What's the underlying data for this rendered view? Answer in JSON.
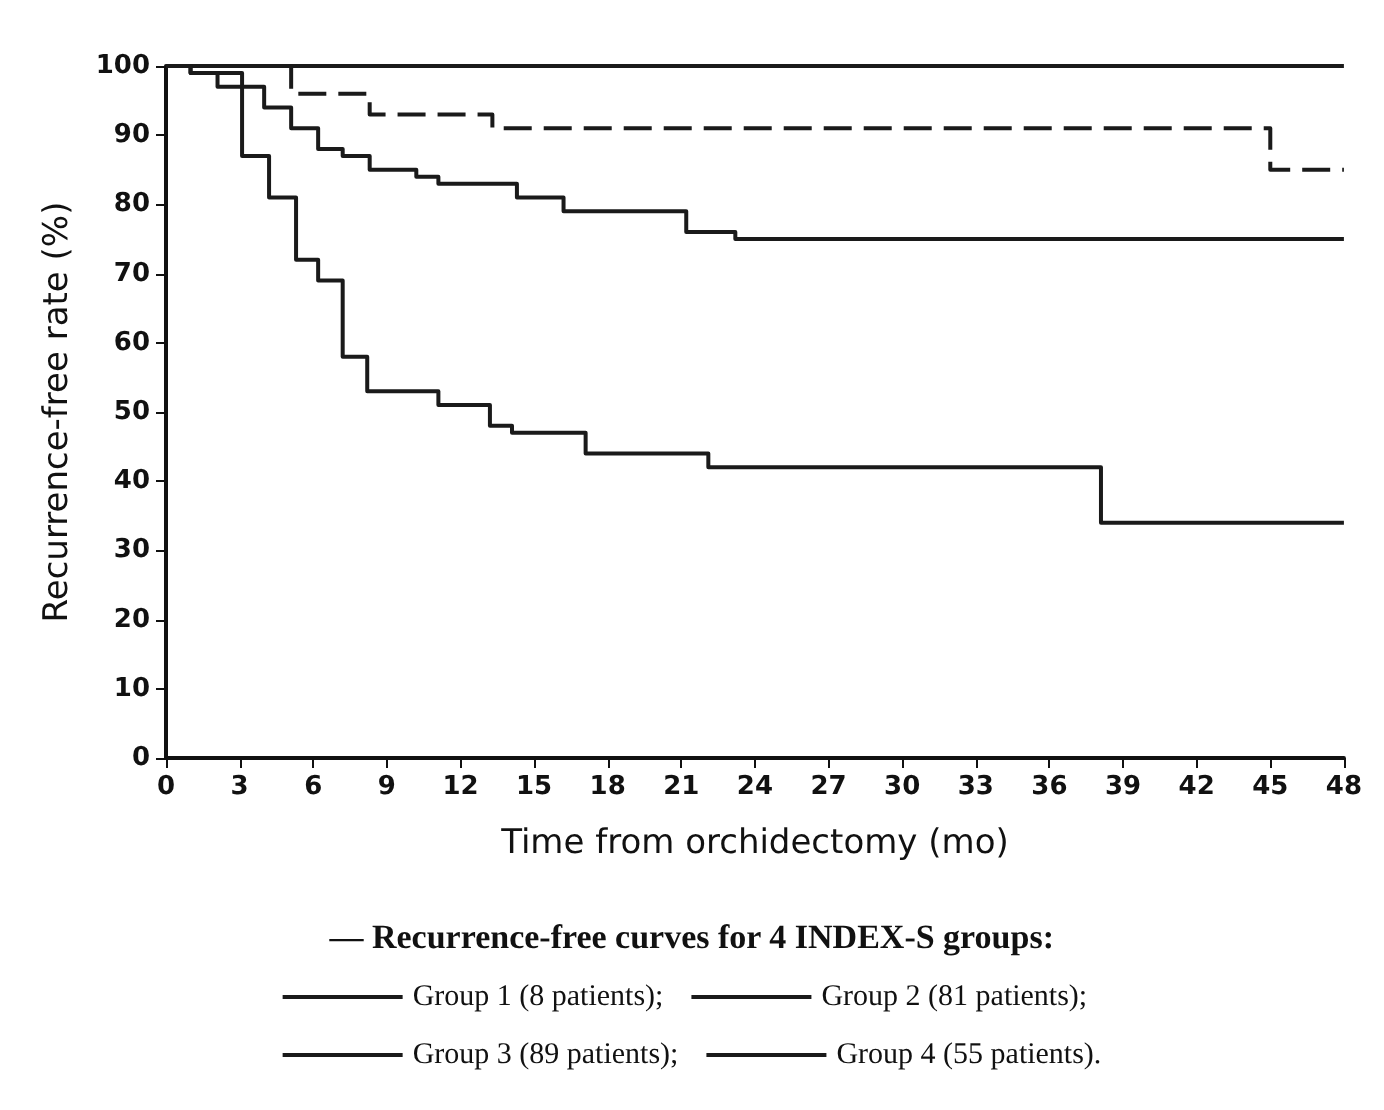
{
  "chart_data": {
    "type": "step",
    "xlabel": "Time from orchidectomy (mo)",
    "ylabel": "Recurrence-free rate (%)",
    "legend_title": "— Recurrence-free curves for 4 INDEX-S groups:",
    "xlim": [
      0,
      48
    ],
    "ylim": [
      0,
      100
    ],
    "xticks": [
      0,
      3,
      6,
      9,
      12,
      15,
      18,
      21,
      24,
      27,
      30,
      33,
      36,
      39,
      42,
      45,
      48
    ],
    "yticks": [
      0,
      10,
      20,
      30,
      40,
      50,
      60,
      70,
      80,
      90,
      100
    ],
    "grid": false,
    "legend": "bottom",
    "marker": "none",
    "series": [
      {
        "name": "Group 1 (8 patients);",
        "color": "#1a1a1a",
        "line_style": "solid",
        "x": [
          0,
          48
        ],
        "values": [
          100,
          100
        ]
      },
      {
        "name": "Group 2 (81 patients);",
        "color": "#1a1a1a",
        "line_style": "dashed",
        "x": [
          0,
          5.1,
          8.3,
          13.3,
          45,
          48
        ],
        "values": [
          100,
          96,
          93,
          91,
          85,
          85
        ]
      },
      {
        "name": "Group 3 (89 patients);",
        "color": "#1a1a1a",
        "line_style": "solid",
        "x": [
          0,
          1,
          3.1,
          4,
          5.1,
          6.2,
          7.2,
          8.3,
          10.2,
          11.1,
          14.3,
          16.2,
          21.2,
          23.2,
          48
        ],
        "values": [
          100,
          99,
          97,
          94,
          91,
          88,
          87,
          85,
          84,
          83,
          81,
          79,
          76,
          75,
          75
        ]
      },
      {
        "name": "Group 4 (55 patients).",
        "color": "#1a1a1a",
        "line_style": "solid",
        "x": [
          0,
          1,
          2.1,
          3.1,
          4.2,
          5.3,
          6.2,
          7.2,
          8.2,
          11.1,
          13.2,
          14.1,
          17.1,
          22.1,
          38.1,
          48
        ],
        "values": [
          100,
          99,
          97,
          87,
          81,
          72,
          69,
          58,
          53,
          51,
          48,
          47,
          44,
          42,
          34,
          34
        ]
      }
    ]
  }
}
